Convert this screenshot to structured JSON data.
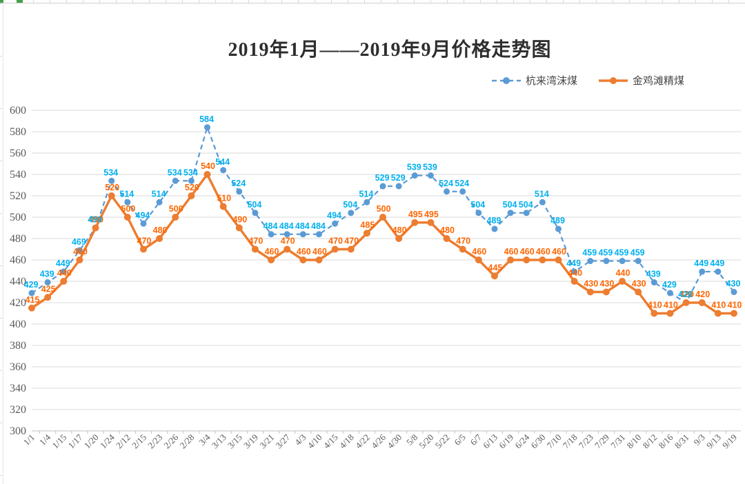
{
  "title": "2019年1月——2019年9月价格走势图",
  "legend": {
    "items": [
      {
        "label": "杭来湾沫煤",
        "color": "#5b9bd5",
        "style": "dashed"
      },
      {
        "label": "金鸡滩精煤",
        "color": "#ed7d31",
        "style": "solid"
      }
    ]
  },
  "colors": {
    "series1_line": "#5b9bd5",
    "series1_label": "#00b0f0",
    "series2_line": "#ed7d31",
    "series2_label": "#ff6600",
    "gridline": "#d9d9d9",
    "axis_line": "#bfbfbf",
    "axis_text": "#5a5a5a"
  },
  "chart_data": {
    "type": "line",
    "title": "2019年1月——2019年9月价格走势图",
    "xlabel": "",
    "ylabel": "",
    "ylim": [
      300,
      600
    ],
    "ytick_step": 20,
    "grid": "horizontal",
    "legend_position": "top-right",
    "data_labels": true,
    "categories": [
      "1/1",
      "1/4",
      "1/15",
      "1/17",
      "1/20",
      "1/24",
      "2/12",
      "2/15",
      "2/23",
      "2/26",
      "2/28",
      "3/4",
      "3/13",
      "3/15",
      "3/19",
      "3/21",
      "3/27",
      "4/3",
      "4/10",
      "4/15",
      "4/18",
      "4/22",
      "4/26",
      "4/30",
      "5/8",
      "5/20",
      "5/22",
      "6/5",
      "6/7",
      "6/13",
      "6/19",
      "6/24",
      "6/30",
      "7/10",
      "7/18",
      "7/23",
      "7/29",
      "7/31",
      "8/10",
      "8/12",
      "8/16",
      "8/31",
      "9/3",
      "9/13",
      "9/19"
    ],
    "series": [
      {
        "name": "杭来湾沫煤",
        "line_color": "#5b9bd5",
        "label_color": "#00b0f0",
        "dashed": true,
        "values": [
          429,
          439,
          449,
          469,
          490,
          534,
          514,
          494,
          514,
          534,
          534,
          584,
          544,
          524,
          504,
          484,
          484,
          484,
          484,
          494,
          504,
          514,
          529,
          529,
          539,
          539,
          524,
          524,
          504,
          489,
          504,
          504,
          514,
          489,
          449,
          459,
          459,
          459,
          459,
          439,
          429,
          420,
          449,
          449,
          430
        ]
      },
      {
        "name": "金鸡滩精煤",
        "line_color": "#ed7d31",
        "label_color": "#ff6600",
        "dashed": false,
        "values": [
          415,
          425,
          440,
          460,
          490,
          520,
          500,
          470,
          480,
          500,
          520,
          540,
          510,
          490,
          470,
          460,
          470,
          460,
          460,
          470,
          470,
          485,
          500,
          480,
          495,
          495,
          480,
          470,
          460,
          445,
          460,
          460,
          460,
          460,
          440,
          430,
          430,
          440,
          430,
          410,
          410,
          420,
          420,
          410,
          410
        ]
      }
    ]
  }
}
